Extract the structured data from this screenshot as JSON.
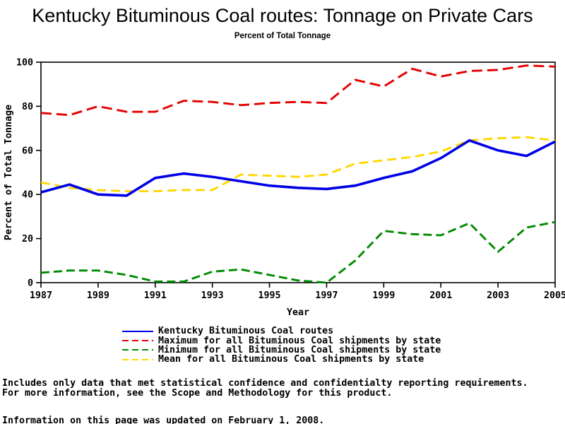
{
  "title": "Kentucky Bituminous Coal routes: Tonnage on Private Cars",
  "subtitle": "Percent of Total Tonnage",
  "chart_data": {
    "type": "line",
    "title": "Kentucky Bituminous Coal routes: Tonnage on Private Cars",
    "subtitle": "Percent of Total Tonnage",
    "xlabel": "Year",
    "ylabel": "Percent of Total Tonnage",
    "xlim": [
      1987,
      2005
    ],
    "ylim": [
      0,
      100
    ],
    "grid": false,
    "legend_position": "bottom",
    "xticks": [
      1987,
      1989,
      1991,
      1993,
      1995,
      1997,
      1999,
      2001,
      2003,
      2005
    ],
    "yticks": [
      0,
      20,
      40,
      60,
      80,
      100
    ],
    "x": [
      1987,
      1988,
      1989,
      1990,
      1991,
      1992,
      1993,
      1994,
      1995,
      1996,
      1997,
      1998,
      1999,
      2000,
      2001,
      2002,
      2003,
      2004,
      2005
    ],
    "series": [
      {
        "name": "Kentucky Bituminous Coal routes",
        "color": "#0000E6",
        "style": "solid",
        "width": 3.6,
        "dash": "",
        "values": [
          41,
          44.5,
          40,
          39.5,
          47.5,
          49.5,
          48,
          46,
          44,
          43,
          42.5,
          44,
          47.5,
          50.5,
          56.5,
          64.5,
          60,
          57.5,
          64
        ]
      },
      {
        "name": "Maximum for all Bituminous Coal shipments by state",
        "color": "#E60000",
        "style": "dashed",
        "width": 2.9,
        "dash": "15 7",
        "values": [
          77,
          76,
          80,
          77.5,
          77.5,
          82.5,
          82,
          80.5,
          81.5,
          82,
          81.5,
          92,
          89,
          97,
          93.5,
          96,
          96.5,
          98.5,
          98
        ]
      },
      {
        "name": "Minimum for all Bituminous Coal shipments by state",
        "color": "#008A00",
        "style": "dashed",
        "width": 2.9,
        "dash": "12 6",
        "values": [
          4.5,
          5.5,
          5.5,
          3.5,
          0.5,
          0.5,
          5,
          6,
          3.5,
          1,
          0,
          10,
          23.5,
          22,
          21.5,
          27,
          14,
          25,
          27.5
        ]
      },
      {
        "name": "Mean for all Bituminous Coal shipments by state",
        "color": "#FFD700",
        "style": "dashed",
        "width": 2.9,
        "dash": "13 7",
        "values": [
          45.5,
          43,
          42,
          41.5,
          41.5,
          42,
          42,
          49,
          48.5,
          48,
          49,
          54,
          55.5,
          57,
          59.5,
          64.5,
          65.5,
          66,
          64.5
        ]
      }
    ]
  },
  "footer": {
    "line1": "Includes only data that met statistical confidence and confidentialty reporting requirements.",
    "line2": "For more information, see the Scope and Methodology for this product.",
    "line3": "Information on this page was updated on February 1, 2008."
  }
}
